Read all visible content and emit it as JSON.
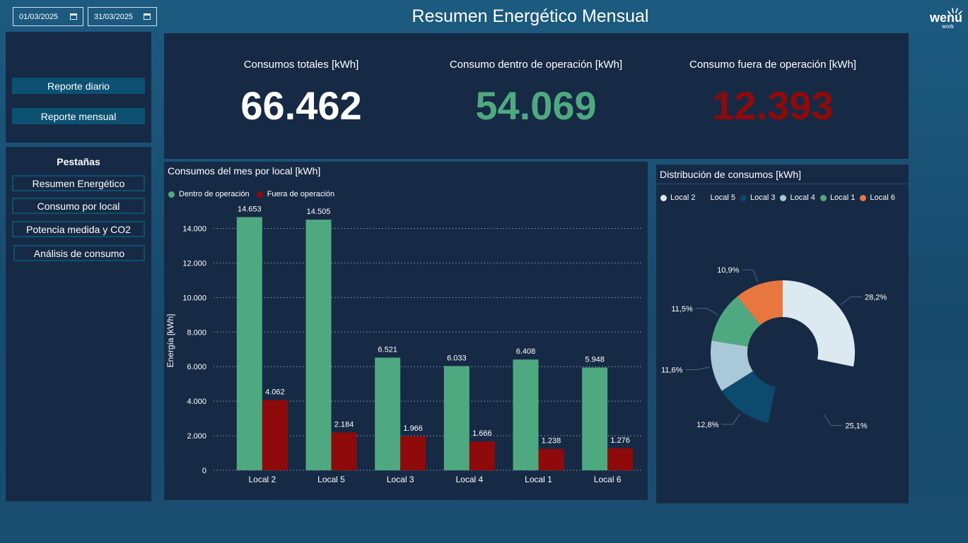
{
  "header": {
    "date_start": "01/03/2025",
    "date_end": "31/03/2025",
    "title": "Resumen Energético Mensual",
    "logo_word": "wenu",
    "logo_sub": "work"
  },
  "reports": {
    "daily": "Reporte diario",
    "monthly": "Reporte mensual"
  },
  "tabs": {
    "heading": "Pestañas",
    "items": [
      "Resumen Energético",
      "Consumo por local",
      "Potencia medida y CO2",
      "Análisis de consumo"
    ]
  },
  "kpis": {
    "total_label": "Consumos totales [kWh]",
    "total_value": "66.462",
    "inside_label": "Consumo dentro de operación [kWh]",
    "inside_value": "54.069",
    "outside_label": "Consumo fuera de operación [kWh]",
    "outside_value": "12.393"
  },
  "colors": {
    "inside": "#4fa980",
    "outside": "#8f0a0a",
    "panel": "#172a45",
    "nav": "#0c5172"
  },
  "chart_data": [
    {
      "type": "bar",
      "title": "Consumos del mes por local [kWh]",
      "ylabel": "Energía [kWh]",
      "xlabel": "",
      "ylim": [
        0,
        15000
      ],
      "yticks": [
        0,
        2000,
        4000,
        6000,
        8000,
        10000,
        12000,
        14000
      ],
      "ytick_labels": [
        "0",
        "2.000",
        "4.000",
        "6.000",
        "8.000",
        "10.000",
        "12.000",
        "14.000"
      ],
      "grid": true,
      "legend_position": "top-left",
      "categories": [
        "Local 2",
        "Local 5",
        "Local 3",
        "Local 4",
        "Local 1",
        "Local 6"
      ],
      "series": [
        {
          "name": "Dentro de operación",
          "color": "#4fa980",
          "values": [
            14653,
            14505,
            6521,
            6033,
            6408,
            5948
          ],
          "labels": [
            "14.653",
            "14.505",
            "6.521",
            "6.033",
            "6.408",
            "5.948"
          ]
        },
        {
          "name": "Fuera de operación",
          "color": "#8f0a0a",
          "values": [
            4062,
            2184,
            1966,
            1666,
            1238,
            1276
          ],
          "labels": [
            "4.062",
            "2.184",
            "1.966",
            "1.666",
            "1.238",
            "1.276"
          ]
        }
      ]
    },
    {
      "type": "pie",
      "title": "Distribución de consumos [kWh]",
      "legend_position": "top",
      "slices": [
        {
          "name": "Local 2",
          "value": 28.2,
          "label": "28,2%",
          "color": "#dde9f1"
        },
        {
          "name": "Local 5",
          "value": 25.1,
          "label": "25,1%",
          "color": "#172a45"
        },
        {
          "name": "Local 3",
          "value": 12.8,
          "label": "12,8%",
          "color": "#0c4a6e"
        },
        {
          "name": "Local 4",
          "value": 11.6,
          "label": "11,6%",
          "color": "#a9c9d8"
        },
        {
          "name": "Local 1",
          "value": 11.5,
          "label": "11,5%",
          "color": "#4fa980"
        },
        {
          "name": "Local 6",
          "value": 10.9,
          "label": "10,9%",
          "color": "#e8773f"
        }
      ]
    }
  ]
}
